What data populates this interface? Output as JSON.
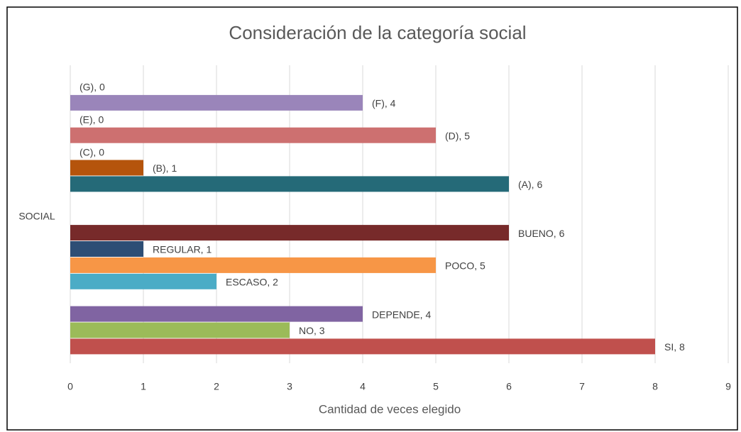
{
  "chart_data": {
    "type": "bar",
    "orientation": "horizontal",
    "title": "Consideración de la categoría social",
    "x_label": "Cantidad de veces elegido",
    "categories": [
      "SOCIAL"
    ],
    "series": [
      {
        "color": "#9a85ba",
        "values": [
          0
        ],
        "value_labels": [
          "(G), 0"
        ]
      },
      {
        "color": "#9a85ba",
        "values": [
          4
        ],
        "value_labels": [
          "(F), 4"
        ]
      },
      {
        "color": "#cd7070",
        "values": [
          0
        ],
        "value_labels": [
          "(E), 0"
        ]
      },
      {
        "color": "#cd7070",
        "values": [
          5
        ],
        "value_labels": [
          "(D), 5"
        ]
      },
      {
        "color": "#b5540c",
        "values": [
          0
        ],
        "value_labels": [
          "(C), 0"
        ]
      },
      {
        "color": "#b5540c",
        "values": [
          1
        ],
        "value_labels": [
          "(B), 1"
        ]
      },
      {
        "color": "#256a78",
        "values": [
          6
        ],
        "value_labels": [
          "(A), 6"
        ]
      },
      {
        "values": [
          null
        ]
      },
      {
        "values": [
          null
        ]
      },
      {
        "color": "#772a2a",
        "values": [
          6
        ],
        "value_labels": [
          "BUENO, 6"
        ]
      },
      {
        "color": "#2d4e75",
        "values": [
          1
        ],
        "value_labels": [
          "REGULAR, 1"
        ]
      },
      {
        "color": "#f79646",
        "values": [
          5
        ],
        "value_labels": [
          "POCO, 5"
        ]
      },
      {
        "color": "#4bacc6",
        "values": [
          2
        ],
        "value_labels": [
          "ESCASO, 2"
        ]
      },
      {
        "values": [
          null
        ]
      },
      {
        "color": "#8064a2",
        "values": [
          4
        ],
        "value_labels": [
          "DEPENDE, 4"
        ]
      },
      {
        "color": "#9bbb59",
        "values": [
          3
        ],
        "value_labels": [
          "NO, 3"
        ]
      },
      {
        "color": "#c0504d",
        "values": [
          8
        ],
        "value_labels": [
          "SI, 8"
        ]
      }
    ],
    "xlim": [
      0,
      9
    ],
    "xticks": [
      0,
      1,
      2,
      3,
      4,
      5,
      6,
      7,
      8,
      9
    ],
    "grid": true
  }
}
